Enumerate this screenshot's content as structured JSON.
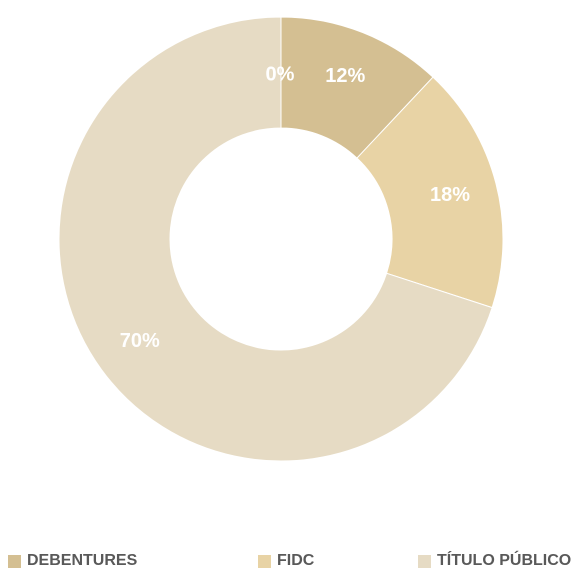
{
  "chart_data": {
    "type": "pie",
    "subtype": "donut",
    "categories": [
      "",
      "DEBENTURES",
      "FIDC",
      "TÍTULO PÚBLICO"
    ],
    "values": [
      0,
      12,
      18,
      70
    ],
    "labels": [
      "0%",
      "12%",
      "18%",
      "70%"
    ],
    "colors": [
      "#e8dcc6",
      "#d4bf92",
      "#e8d3a5",
      "#e6dbc4"
    ],
    "legend": {
      "position": "bottom",
      "items": [
        {
          "label": "DEBENTURES",
          "color": "#d4bf92"
        },
        {
          "label": "FIDC",
          "color": "#e8d3a5"
        },
        {
          "label": "TÍTULO PÚBLICO",
          "color": "#e6dbc4"
        }
      ]
    }
  }
}
